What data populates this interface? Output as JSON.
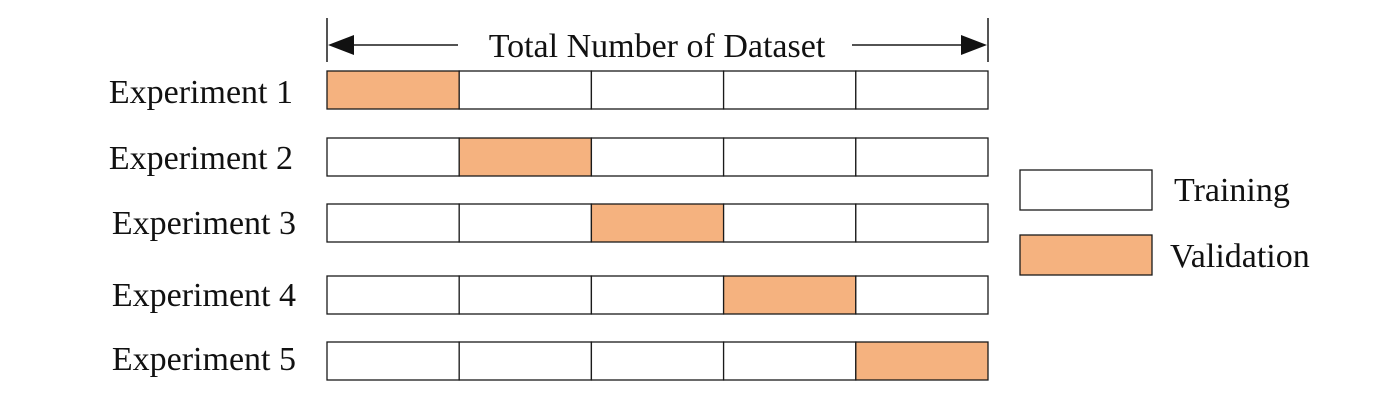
{
  "header": {
    "span_label": "Total Number of Dataset"
  },
  "experiments": [
    {
      "label": "Experiment 1",
      "validation_fold": 1
    },
    {
      "label": "Experiment 2",
      "validation_fold": 2
    },
    {
      "label": "Experiment 3",
      "validation_fold": 3
    },
    {
      "label": "Experiment 4",
      "validation_fold": 4
    },
    {
      "label": "Experiment 5",
      "validation_fold": 5
    }
  ],
  "folds_per_experiment": 5,
  "legend": {
    "training_label": "Training",
    "validation_label": "Validation"
  },
  "colors": {
    "training": "#ffffff",
    "validation": "#f5b27f",
    "stroke": "#1a1a1a"
  }
}
